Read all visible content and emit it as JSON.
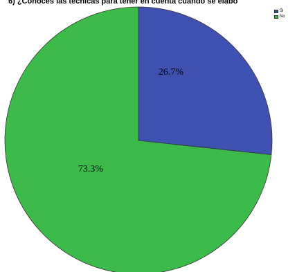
{
  "chart_data": {
    "type": "pie",
    "title": "6) ¿Conoces las técnicas para tener en cuenta cuando se elabo",
    "categories": [
      "Si",
      "No"
    ],
    "values": [
      26.7,
      73.3
    ],
    "labels": [
      "26.7%",
      "73.3%"
    ],
    "colors": [
      "#3f51b0",
      "#3cba4a"
    ],
    "legend_position": "top-right",
    "start_angle": "12 o'clock",
    "direction": "clockwise"
  }
}
